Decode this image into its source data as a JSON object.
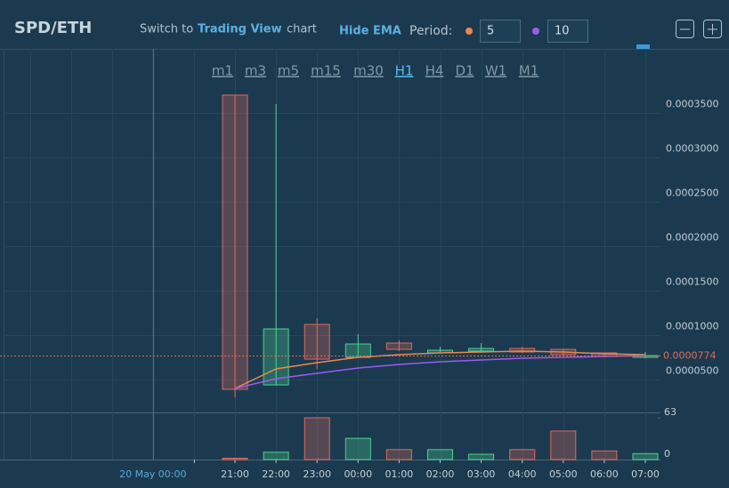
{
  "header": {
    "pair": "SPD/ETH",
    "switch_prefix": "Switch to",
    "switch_link": "Trading View",
    "switch_suffix": "chart",
    "ema_toggle": "Hide EMA",
    "period_label": "Period:"
  },
  "timeframes": {
    "options": [
      "m1",
      "m3",
      "m5",
      "m15",
      "m30",
      "H1",
      "H4",
      "D1",
      "W1",
      "M1"
    ],
    "active": "H1"
  },
  "chart_data": {
    "type": "candlestick",
    "categories": [
      "21:00",
      "22:00",
      "23:00",
      "00:00",
      "01:00",
      "02:00",
      "03:00",
      "04:00",
      "05:00",
      "06:00",
      "07:00"
    ],
    "date_label": "20 May 00:00",
    "open": [
      0.00037,
      4.4e-05,
      0.000112,
      7.5e-05,
      9.1e-05,
      8e-05,
      8.2e-05,
      8.5e-05,
      8.4e-05,
      8e-05,
      7.5e-05
    ],
    "high": [
      0.00037,
      0.00036,
      0.000119,
      0.000101,
      9.4e-05,
      8.7e-05,
      9.1e-05,
      8.7e-05,
      8.4e-05,
      8e-05,
      8.1e-05
    ],
    "low": [
      3e-05,
      4.4e-05,
      6.2e-05,
      7.5e-05,
      8.2e-05,
      8e-05,
      8.2e-05,
      8e-05,
      7.7e-05,
      7.5e-05,
      7.4e-05
    ],
    "close": [
      3.9e-05,
      0.000107,
      7.3e-05,
      9e-05,
      8.4e-05,
      8.3e-05,
      8.5e-05,
      8.1e-05,
      7.8e-05,
      7.6e-05,
      7.7e-05
    ],
    "volume": [
      2,
      11,
      63,
      32,
      15,
      15,
      8,
      15,
      43,
      13,
      9
    ],
    "up_color": "#4fd08f",
    "down_color": "#e0695b",
    "ema": [
      {
        "period": 5,
        "color": "#e8894f",
        "values": [
          4e-05,
          6.2e-05,
          6.9e-05,
          7.5e-05,
          7.8e-05,
          8e-05,
          8.1e-05,
          8.2e-05,
          8.1e-05,
          7.9e-05,
          7.8e-05
        ]
      },
      {
        "period": 10,
        "color": "#9b5cf0",
        "values": [
          4e-05,
          5.1e-05,
          5.7e-05,
          6.3e-05,
          6.7e-05,
          7e-05,
          7.2e-05,
          7.4e-05,
          7.5e-05,
          7.6e-05,
          7.7e-05
        ]
      }
    ],
    "last_price": 7.74e-05,
    "ylim": [
      1.3e-05,
      0.000422
    ],
    "yticks": [
      {
        "value": 5e-05,
        "label": "0.0000500"
      },
      {
        "value": 0.0001,
        "label": "0.0001000"
      },
      {
        "value": 0.00015,
        "label": "0.0001500"
      },
      {
        "value": 0.0002,
        "label": "0.0002000"
      },
      {
        "value": 0.00025,
        "label": "0.0002500"
      },
      {
        "value": 0.0003,
        "label": "0.0003000"
      },
      {
        "value": 0.00035,
        "label": "0.0003500"
      }
    ],
    "vlim": [
      0,
      63
    ],
    "vticks": [
      0,
      63
    ],
    "grid": true
  }
}
